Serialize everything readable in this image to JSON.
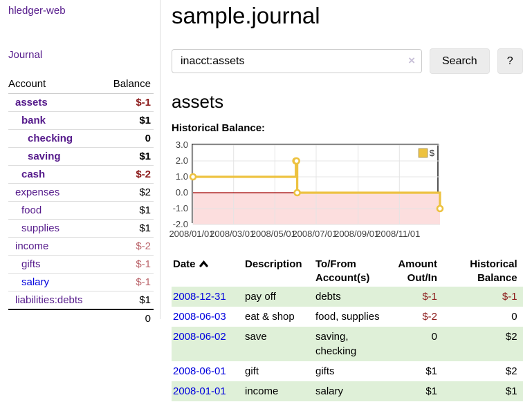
{
  "app": {
    "title": "hledger-web"
  },
  "colors": {
    "brand_purple": "#551a8b",
    "link_blue": "#0000dd",
    "negative_strong": "#8b1a1a",
    "negative_soft": "#bb666c",
    "row_green": "#dff0d8",
    "series_gold": "#edc240",
    "negative_region_pink": "#fcdede",
    "zero_line_red": "#a00000"
  },
  "sidebar": {
    "journal_label": "Journal",
    "accounts": {
      "headers": [
        "Account",
        "Balance"
      ],
      "rows": [
        {
          "name": "assets",
          "balance": "$-1",
          "level": 1,
          "bold": true,
          "negative": true,
          "blue": false
        },
        {
          "name": "bank",
          "balance": "$1",
          "level": 2,
          "bold": true,
          "negative": false,
          "blue": false
        },
        {
          "name": "checking",
          "balance": "0",
          "level": 3,
          "bold": true,
          "negative": false,
          "blue": false
        },
        {
          "name": "saving",
          "balance": "$1",
          "level": 3,
          "bold": true,
          "negative": false,
          "blue": false
        },
        {
          "name": "cash",
          "balance": "$-2",
          "level": 2,
          "bold": true,
          "negative": true,
          "blue": false
        },
        {
          "name": "expenses",
          "balance": "$2",
          "level": 1,
          "bold": false,
          "negative": false,
          "blue": false
        },
        {
          "name": "food",
          "balance": "$1",
          "level": 2,
          "bold": false,
          "negative": false,
          "blue": false
        },
        {
          "name": "supplies",
          "balance": "$1",
          "level": 2,
          "bold": false,
          "negative": false,
          "blue": false
        },
        {
          "name": "income",
          "balance": "$-2",
          "level": 1,
          "bold": false,
          "negative": true,
          "blue": false
        },
        {
          "name": "gifts",
          "balance": "$-1",
          "level": 2,
          "bold": false,
          "negative": true,
          "blue": false
        },
        {
          "name": "salary",
          "balance": "$-1",
          "level": 2,
          "bold": false,
          "negative": true,
          "blue": true
        },
        {
          "name": "liabilities:debts",
          "balance": "$1",
          "level": 1,
          "bold": false,
          "negative": false,
          "blue": false
        }
      ],
      "total": "0"
    }
  },
  "header": {
    "title": "sample.journal"
  },
  "search": {
    "value": "inacct:assets",
    "clear_icon": "×",
    "button_label": "Search",
    "help_label": "?"
  },
  "register": {
    "account_title": "assets",
    "chart_label": "Historical Balance:",
    "table": {
      "headers": [
        "Date",
        "Description",
        "To/From Account(s)",
        "Amount Out/In",
        "Historical Balance"
      ],
      "rows": [
        {
          "date": "2008-12-31",
          "description": "pay off",
          "accounts": "debts",
          "amount": "$-1",
          "amount_negative": true,
          "balance": "$-1",
          "balance_negative": true
        },
        {
          "date": "2008-06-03",
          "description": "eat & shop",
          "accounts": "food, supplies",
          "amount": "$-2",
          "amount_negative": true,
          "balance": "0",
          "balance_negative": false
        },
        {
          "date": "2008-06-02",
          "description": "save",
          "accounts": "saving, checking",
          "amount": "0",
          "amount_negative": false,
          "balance": "$2",
          "balance_negative": false
        },
        {
          "date": "2008-06-01",
          "description": "gift",
          "accounts": "gifts",
          "amount": "$1",
          "amount_negative": false,
          "balance": "$2",
          "balance_negative": false
        },
        {
          "date": "2008-01-01",
          "description": "income",
          "accounts": "salary",
          "amount": "$1",
          "amount_negative": false,
          "balance": "$1",
          "balance_negative": false
        }
      ]
    }
  },
  "chart_data": {
    "type": "line",
    "step": true,
    "series": [
      {
        "name": "$",
        "color": "#edc240",
        "points": [
          {
            "x": "2008-01-01",
            "y": 1
          },
          {
            "x": "2008-06-01",
            "y": 2
          },
          {
            "x": "2008-06-02",
            "y": 2
          },
          {
            "x": "2008-06-03",
            "y": 0
          },
          {
            "x": "2008-12-31",
            "y": -1
          }
        ]
      }
    ],
    "xlim": [
      "2008-01-01",
      "2008-12-31"
    ],
    "ylim": [
      -2,
      3
    ],
    "x_ticks": [
      "2008/01/01",
      "2008/03/01",
      "2008/05/01",
      "2008/07/01",
      "2008/09/01",
      "2008/11/01"
    ],
    "y_ticks": [
      "3.0",
      "2.0",
      "1.0",
      "0.0",
      "-1.0",
      "-2.0"
    ],
    "grid": true,
    "legend_position": "top-right",
    "negative_region_color": "#fcdede",
    "zero_line_color": "#a00000"
  }
}
